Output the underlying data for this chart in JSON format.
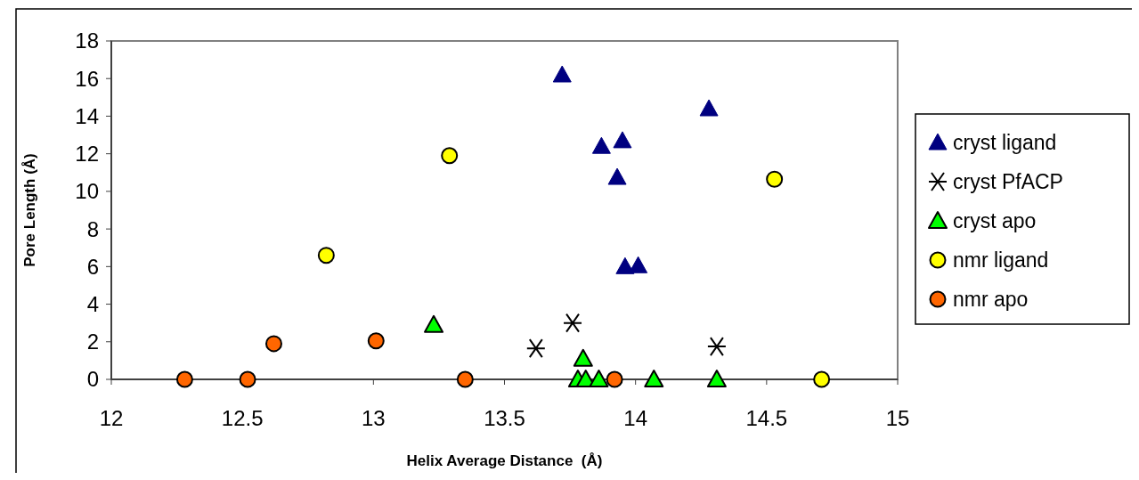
{
  "chart_data": {
    "type": "scatter",
    "xlabel": "Helix Average Distance  (Å)",
    "ylabel": "Pore Length (Å)",
    "xlim": [
      12,
      15
    ],
    "xticks": [
      12,
      12.5,
      13,
      13.5,
      14,
      14.5,
      15
    ],
    "ylim": [
      0,
      18
    ],
    "yticks": [
      0,
      2,
      4,
      6,
      8,
      10,
      12,
      14,
      16,
      18
    ],
    "grid": false,
    "legend": "right",
    "series": [
      {
        "name": "cryst ligand",
        "color": "#000080",
        "marker": "triangle",
        "x": [
          13.72,
          14.28,
          13.87,
          13.95,
          13.93,
          13.96,
          14.01
        ],
        "values": [
          16.2,
          14.4,
          12.4,
          12.7,
          10.75,
          6.0,
          6.05
        ]
      },
      {
        "name": "cryst PfACP",
        "color": "#000000",
        "marker": "cross",
        "x": [
          13.62,
          13.76,
          14.31
        ],
        "values": [
          1.65,
          3.0,
          1.75
        ]
      },
      {
        "name": "cryst apo",
        "color": "#00ff00",
        "marker": "triangle",
        "x": [
          13.23,
          13.8,
          13.78,
          13.81,
          13.86,
          14.07,
          14.31
        ],
        "values": [
          2.9,
          1.1,
          0,
          0,
          0,
          0,
          0
        ]
      },
      {
        "name": "nmr ligand",
        "color": "#ffff00",
        "marker": "circle",
        "x": [
          13.29,
          12.82,
          14.53,
          14.71
        ],
        "values": [
          11.9,
          6.6,
          10.65,
          0
        ]
      },
      {
        "name": "nmr apo",
        "color": "#ff6600",
        "marker": "circle",
        "x": [
          12.28,
          12.52,
          12.62,
          13.01,
          13.35,
          13.92
        ],
        "values": [
          0,
          0,
          1.9,
          2.05,
          0,
          0
        ]
      }
    ]
  }
}
